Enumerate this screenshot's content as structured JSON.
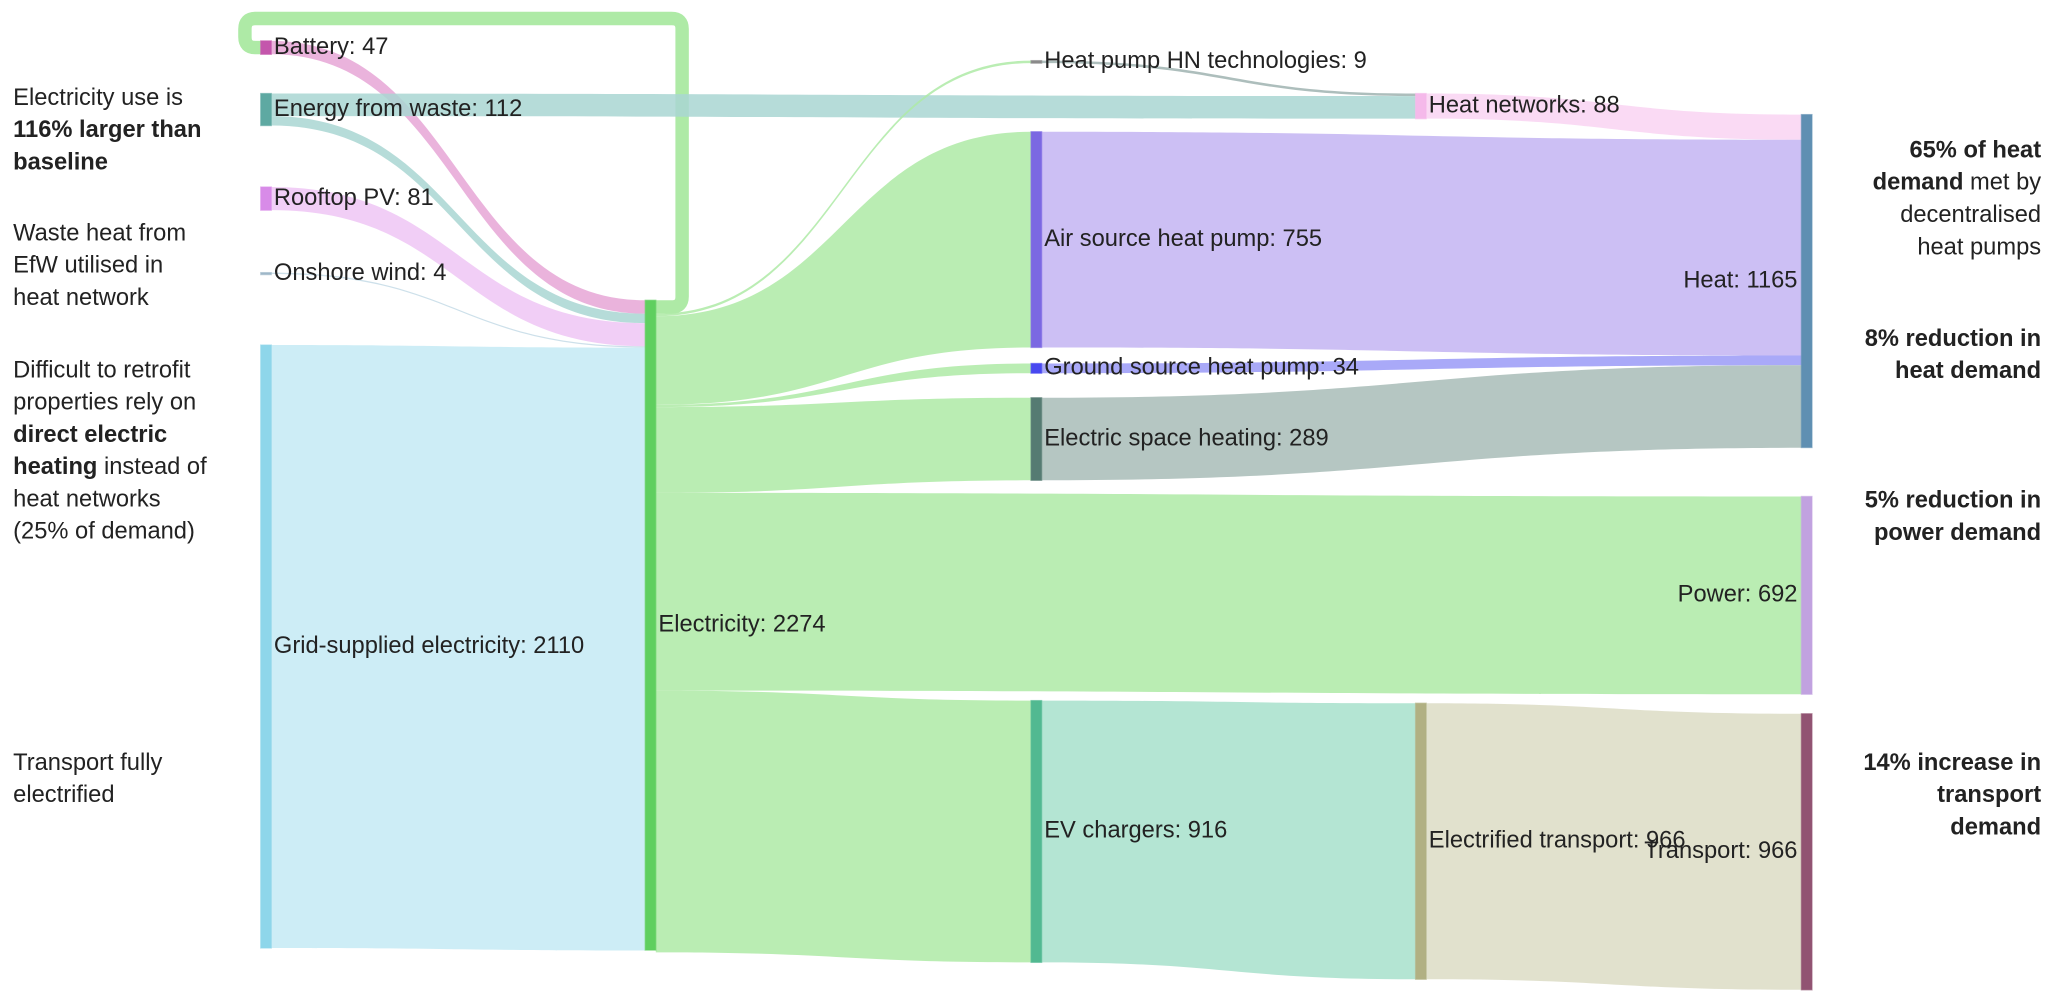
{
  "chart_data": {
    "type": "sankey",
    "nodes": [
      {
        "label": "Battery: 47",
        "value": 47,
        "color": "#c456ac"
      },
      {
        "label": "Energy from waste: 112",
        "value": 112,
        "color": "#5ea9a2"
      },
      {
        "label": "Rooftop PV: 81",
        "value": 81,
        "color": "#d88be8"
      },
      {
        "label": "Onshore wind: 4",
        "value": 4,
        "color": "#9fb8c8"
      },
      {
        "label": "Grid-supplied electricity: 2110",
        "value": 2110,
        "color": "#8ed6ea"
      },
      {
        "label": "Electricity: 2274",
        "value": 2274,
        "color": "#5fcf5f"
      },
      {
        "label": "Heat pump HN technologies: 9",
        "value": 9,
        "color": "#8a8a8a"
      },
      {
        "label": "Air source heat pump: 755",
        "value": 755,
        "color": "#7b68e2"
      },
      {
        "label": "Ground source heat pump: 34",
        "value": 34,
        "color": "#4848f0"
      },
      {
        "label": "Electric space heating: 289",
        "value": 289,
        "color": "#557b72"
      },
      {
        "label": "EV chargers: 916",
        "value": 916,
        "color": "#52b991"
      },
      {
        "label": "Heat networks: 88",
        "value": 88,
        "color": "#f5b9ea"
      },
      {
        "label": "Electrified transport: 966",
        "value": 966,
        "color": "#b1b083"
      },
      {
        "label": "Heat: 1165",
        "value": 1165,
        "color": "#5f8fb2"
      },
      {
        "label": "Power: 692",
        "value": 692,
        "color": "#c1a2e0"
      },
      {
        "label": "Transport: 966",
        "value": 966,
        "color": "#915372"
      }
    ],
    "links": [
      {
        "source": 5,
        "target": 0,
        "value": 47,
        "color": "#aeeaa6"
      },
      {
        "source": 0,
        "target": 5,
        "value": 47,
        "color": "#e6a6d6"
      },
      {
        "source": 6,
        "target": 11,
        "value": 9,
        "color": "#9fb3b0"
      },
      {
        "source": 1,
        "target": 11,
        "value": 79,
        "color": "#a9d6d2"
      },
      {
        "source": 1,
        "target": 5,
        "value": 33,
        "color": "#a9d6d2"
      },
      {
        "source": 2,
        "target": 5,
        "value": 81,
        "color": "#eec6f4"
      },
      {
        "source": 3,
        "target": 5,
        "value": 4,
        "color": "#c4dbe6"
      },
      {
        "source": 4,
        "target": 5,
        "value": 2110,
        "color": "#c4eaf5"
      },
      {
        "source": 5,
        "target": 6,
        "value": 9,
        "color": "#aeeaa6"
      },
      {
        "source": 5,
        "target": 7,
        "value": 310,
        "target_value": 755,
        "color": "#aeeaa6"
      },
      {
        "source": 5,
        "target": 8,
        "value": 8,
        "target_value": 34,
        "color": "#aeeaa6"
      },
      {
        "source": 5,
        "target": 9,
        "value": 300,
        "target_value": 289,
        "color": "#aeeaa6"
      },
      {
        "source": 5,
        "target": 14,
        "value": 692,
        "color": "#aeeaa6"
      },
      {
        "source": 5,
        "target": 10,
        "value": 916,
        "color": "#aeeaa6"
      },
      {
        "source": 11,
        "target": 13,
        "value": 88,
        "color": "#f9d4f2"
      },
      {
        "source": 7,
        "target": 13,
        "value": 755,
        "color": "#c3b4f2"
      },
      {
        "source": 8,
        "target": 13,
        "value": 34,
        "color": "#9a9af7"
      },
      {
        "source": 9,
        "target": 13,
        "value": 289,
        "color": "#a8bcb7"
      },
      {
        "source": 10,
        "target": 12,
        "value": 916,
        "target_value": 966,
        "color": "#a7e0cb"
      },
      {
        "source": 12,
        "target": 15,
        "value": 966,
        "color": "#dcdcc4"
      }
    ],
    "annotations": [
      {
        "side": "left",
        "lines": [
          [
            {
              "text": "Electricity use is"
            }
          ],
          [
            {
              "text": "116% larger than",
              "bold": true
            }
          ],
          [
            {
              "text": "baseline",
              "bold": true
            }
          ]
        ]
      },
      {
        "side": "left",
        "lines": [
          [
            {
              "text": "Waste heat from"
            }
          ],
          [
            {
              "text": "EfW utilised in"
            }
          ],
          [
            {
              "text": "heat network"
            }
          ]
        ]
      },
      {
        "side": "left",
        "lines": [
          [
            {
              "text": "Difficult to retrofit"
            }
          ],
          [
            {
              "text": "properties rely on"
            }
          ],
          [
            {
              "text": "direct electric",
              "bold": true
            }
          ],
          [
            {
              "text": "heating",
              "bold": true
            },
            {
              "text": " instead of"
            }
          ],
          [
            {
              "text": "heat networks"
            }
          ],
          [
            {
              "text": "(25% of demand)"
            }
          ]
        ]
      },
      {
        "side": "left",
        "lines": [
          [
            {
              "text": "Transport fully"
            }
          ],
          [
            {
              "text": "electrified"
            }
          ]
        ]
      },
      {
        "side": "right",
        "lines": [
          [
            {
              "text": "65% of heat",
              "bold": true
            }
          ],
          [
            {
              "text": "demand",
              "bold": true
            },
            {
              "text": " met by"
            }
          ],
          [
            {
              "text": "decentralised"
            }
          ],
          [
            {
              "text": "heat pumps"
            }
          ]
        ]
      },
      {
        "side": "right",
        "lines": [
          [
            {
              "text": "8% reduction in",
              "bold": true
            }
          ],
          [
            {
              "text": "heat demand",
              "bold": true
            }
          ]
        ]
      },
      {
        "side": "right",
        "lines": [
          [
            {
              "text": "5% reduction in",
              "bold": true
            }
          ],
          [
            {
              "text": "power demand",
              "bold": true
            }
          ]
        ]
      },
      {
        "side": "right",
        "lines": [
          [
            {
              "text": "14% increase in",
              "bold": true
            }
          ],
          [
            {
              "text": "transport",
              "bold": true
            }
          ],
          [
            {
              "text": "demand",
              "bold": true
            }
          ]
        ]
      }
    ]
  }
}
